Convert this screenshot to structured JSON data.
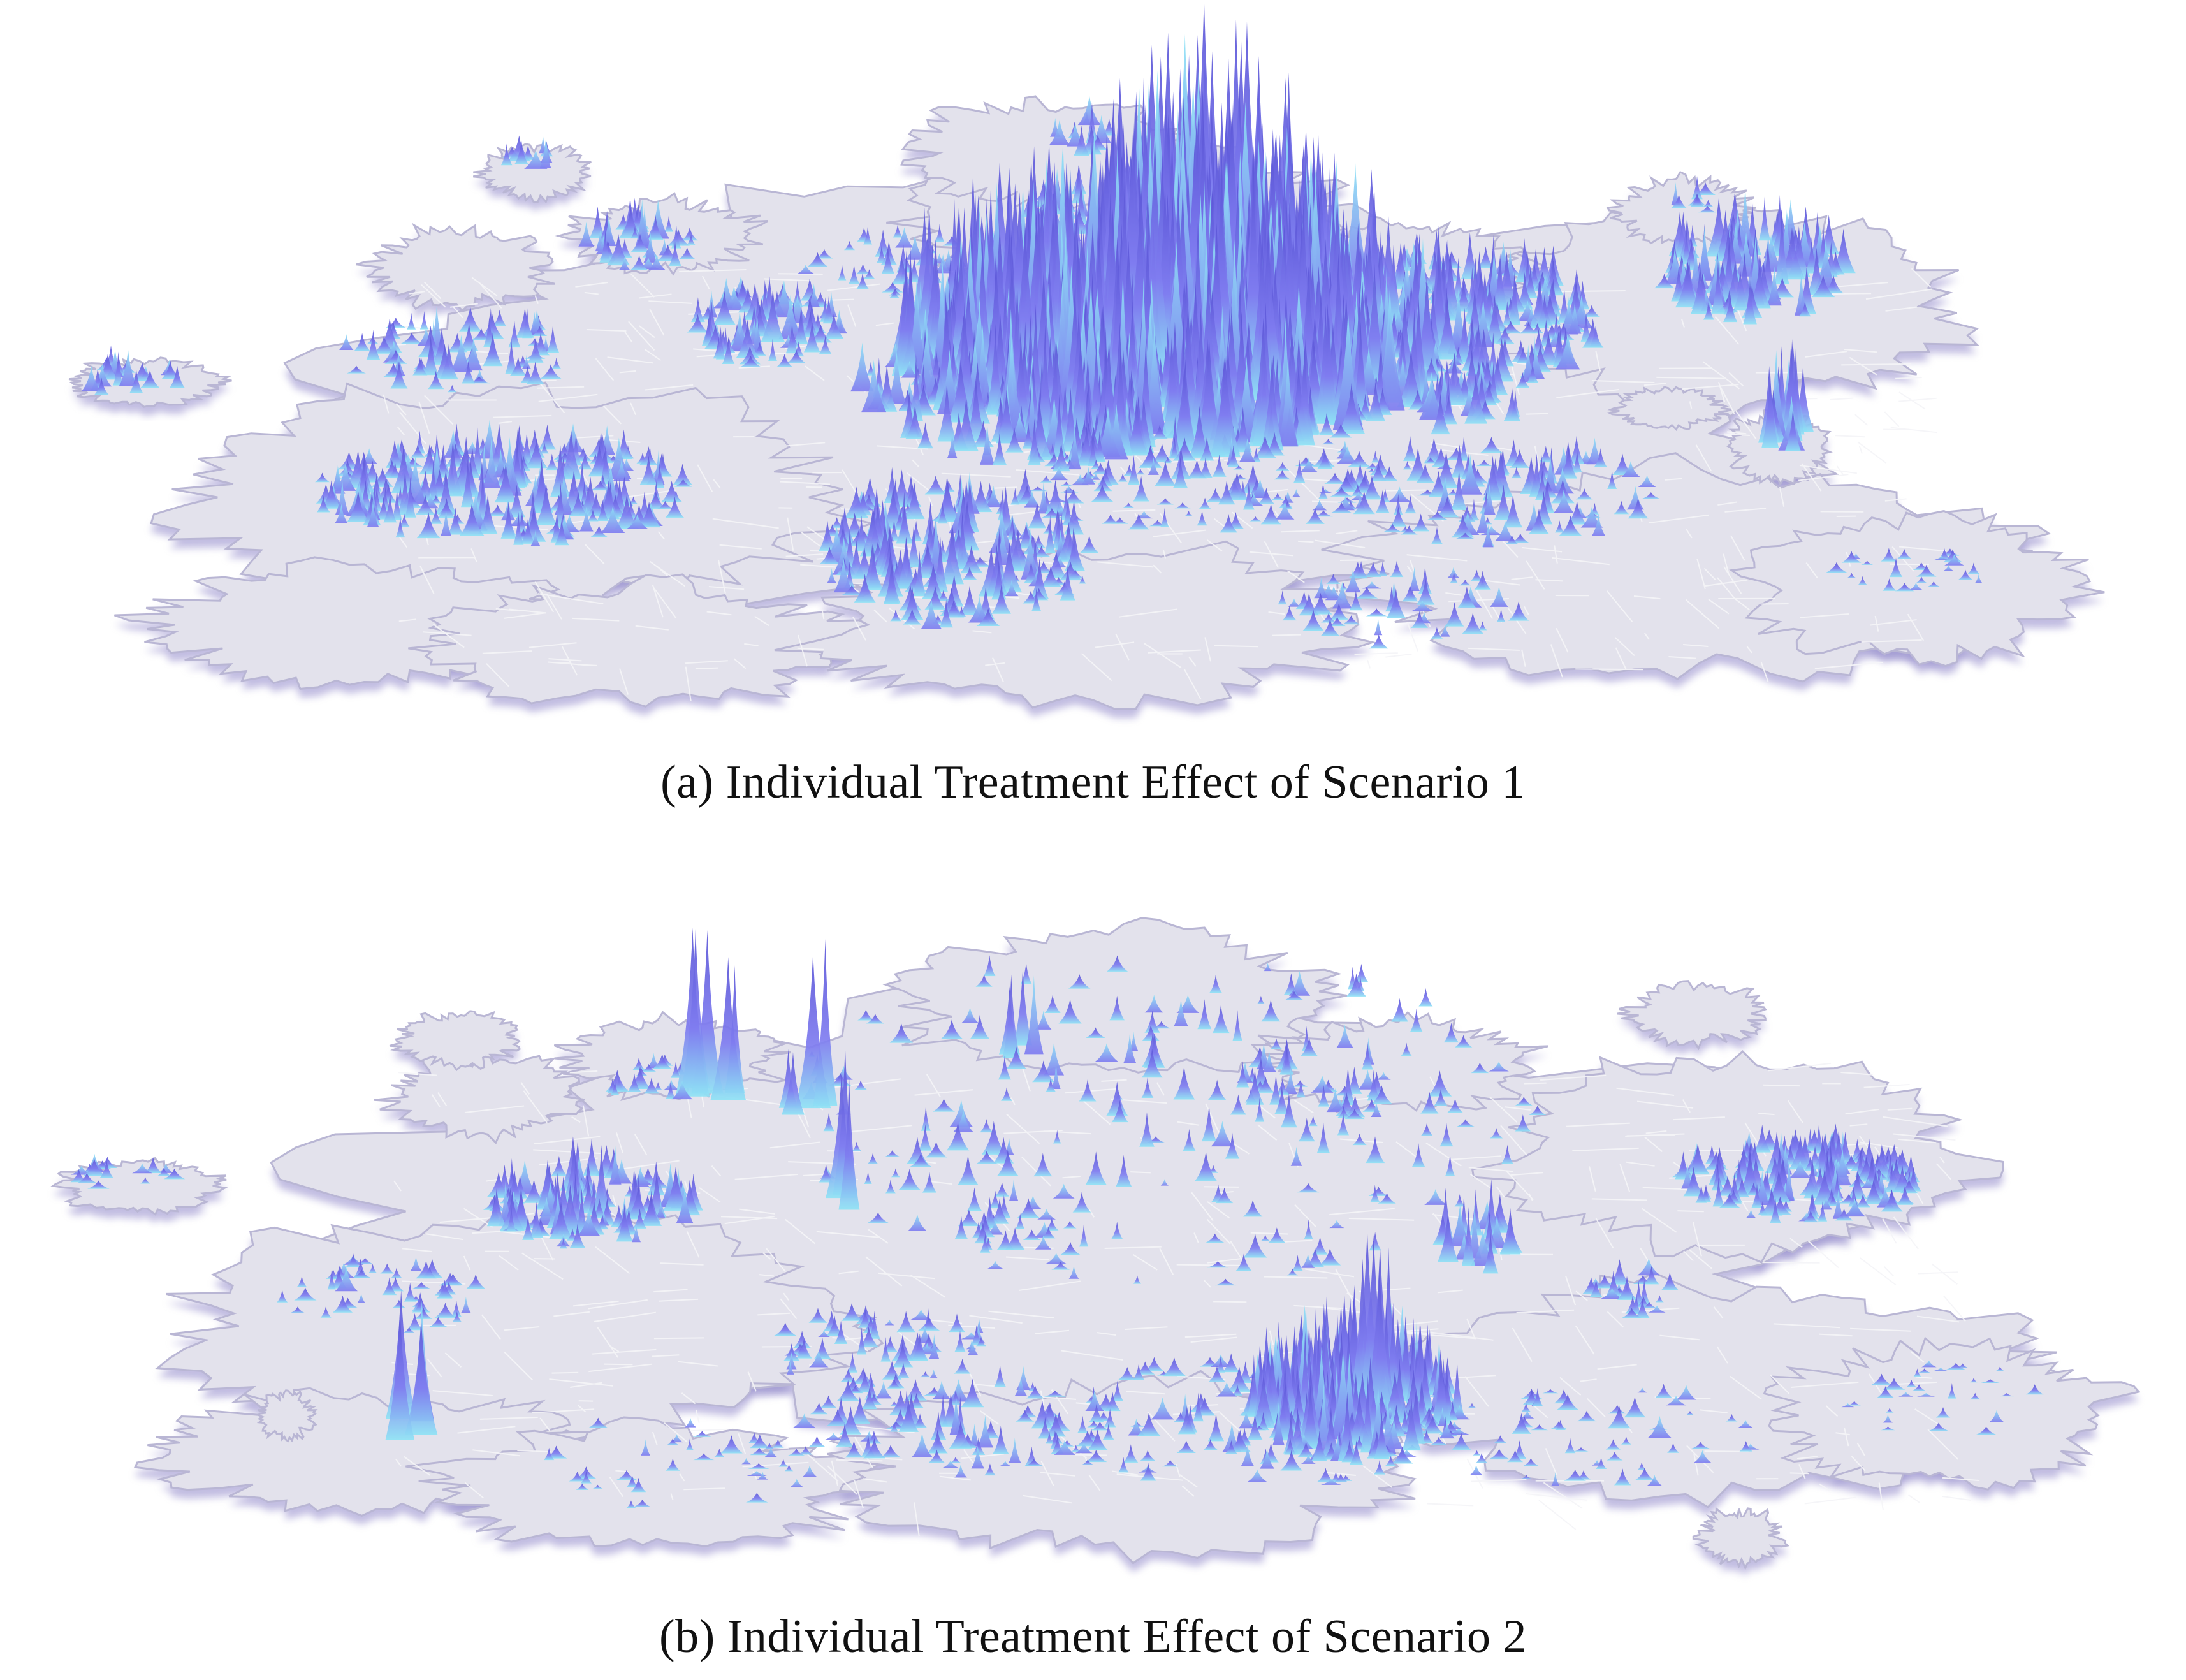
{
  "figure": {
    "panels": [
      {
        "caption": "(a)  Individual Treatment Effect of Scenario 1",
        "peak_density": "high, concentrated in central core"
      },
      {
        "caption": "(b)  Individual Treatment Effect of Scenario 2",
        "peak_density": "sparse, dispersed across region"
      }
    ]
  },
  "colors": {
    "land": "#e3e2ec",
    "land_edge": "#b9b6d4",
    "shadow": "#8f86c9",
    "roads": "#f5f5f8",
    "peak_dark": "#5a55d6",
    "peak_mid": "#7f7cf0",
    "peak_light": "#8fe3f5"
  }
}
